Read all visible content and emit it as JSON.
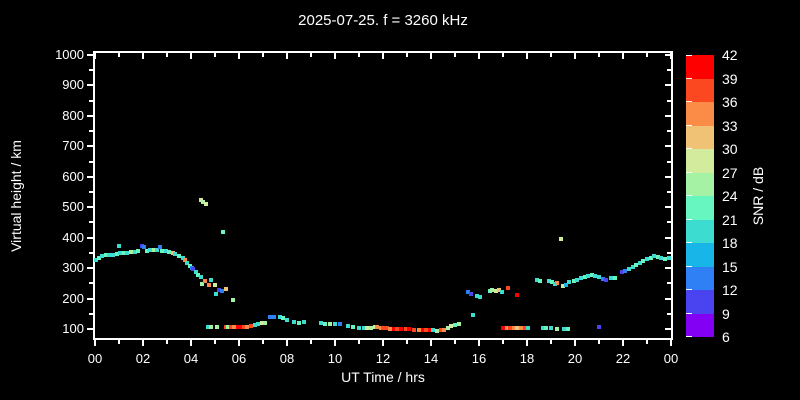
{
  "title": "2025-07-25. f = 3260 kHz",
  "chart_data": {
    "type": "scatter",
    "title": "2025-07-25. f = 3260 kHz",
    "xlabel": "UT Time / hrs",
    "ylabel": "Virtual height / km",
    "colorbar_label": "SNR / dB",
    "background_color": "#000000",
    "text_color": "#ffffff",
    "grid": false,
    "xlim_hours": [
      0,
      24
    ],
    "x_tick_labels": [
      "00",
      "02",
      "04",
      "06",
      "08",
      "10",
      "12",
      "14",
      "16",
      "18",
      "20",
      "22",
      "00"
    ],
    "x_tick_hours": [
      0,
      2,
      4,
      6,
      8,
      10,
      12,
      14,
      16,
      18,
      20,
      22,
      24
    ],
    "x_minor_tick_hours": [
      1,
      3,
      5,
      7,
      9,
      11,
      13,
      15,
      17,
      19,
      21,
      23
    ],
    "ylim_km": [
      70,
      1006
    ],
    "y_tick_km": [
      100,
      200,
      300,
      400,
      500,
      600,
      700,
      800,
      900,
      1000
    ],
    "y_minor_tick_km": [
      150,
      250,
      350,
      450,
      550,
      650,
      750,
      850,
      950
    ],
    "colorbar": {
      "min_db": 6,
      "max_db": 42,
      "step_db": 3,
      "tick_labels": [
        "42",
        "39",
        "36",
        "33",
        "30",
        "27",
        "24",
        "21",
        "18",
        "15",
        "12",
        "9",
        "6"
      ],
      "segment_colors_top_to_bottom": [
        "#ff0000",
        "#fc4821",
        "#fa8c48",
        "#f0c276",
        "#d2eb9c",
        "#a6f2a4",
        "#68f6c0",
        "#3cdcd0",
        "#18b6e8",
        "#2e80f4",
        "#4a44f0",
        "#8400f4"
      ]
    },
    "points_t_h_snr": [
      [
        0.05,
        328,
        18
      ],
      [
        0.15,
        333,
        21
      ],
      [
        0.3,
        340,
        18
      ],
      [
        0.45,
        343,
        21
      ],
      [
        0.6,
        344,
        18
      ],
      [
        0.75,
        343,
        18
      ],
      [
        0.9,
        345,
        21
      ],
      [
        1.0,
        372,
        18
      ],
      [
        1.05,
        348,
        18
      ],
      [
        1.2,
        350,
        21
      ],
      [
        1.35,
        349,
        18
      ],
      [
        1.5,
        352,
        24
      ],
      [
        1.65,
        354,
        18
      ],
      [
        1.8,
        356,
        21
      ],
      [
        1.95,
        373,
        9
      ],
      [
        2.05,
        370,
        12
      ],
      [
        2.15,
        357,
        21
      ],
      [
        2.3,
        360,
        18
      ],
      [
        2.45,
        358,
        24
      ],
      [
        2.6,
        359,
        18
      ],
      [
        2.7,
        368,
        12
      ],
      [
        2.8,
        357,
        21
      ],
      [
        2.95,
        355,
        18
      ],
      [
        3.1,
        352,
        21
      ],
      [
        3.25,
        350,
        30
      ],
      [
        3.35,
        345,
        18
      ],
      [
        3.5,
        340,
        21
      ],
      [
        3.65,
        332,
        18
      ],
      [
        3.75,
        326,
        33
      ],
      [
        3.85,
        318,
        18
      ],
      [
        3.95,
        308,
        21
      ],
      [
        4.05,
        300,
        12
      ],
      [
        4.1,
        296,
        9
      ],
      [
        4.2,
        287,
        18
      ],
      [
        4.3,
        279,
        21
      ],
      [
        4.4,
        270,
        18
      ],
      [
        4.4,
        524,
        27
      ],
      [
        4.5,
        517,
        24
      ],
      [
        4.62,
        509,
        27
      ],
      [
        5.33,
        419,
        21
      ],
      [
        4.45,
        248,
        24
      ],
      [
        4.6,
        258,
        33
      ],
      [
        4.75,
        243,
        33
      ],
      [
        4.85,
        260,
        18
      ],
      [
        5.0,
        246,
        27
      ],
      [
        5.05,
        214,
        18
      ],
      [
        5.15,
        228,
        9
      ],
      [
        5.3,
        224,
        12
      ],
      [
        5.45,
        230,
        30
      ],
      [
        5.75,
        195,
        24
      ],
      [
        4.7,
        106,
        18
      ],
      [
        4.85,
        107,
        24
      ],
      [
        5.1,
        106,
        24
      ],
      [
        5.45,
        107,
        36
      ],
      [
        5.55,
        108,
        24
      ],
      [
        5.65,
        107,
        36
      ],
      [
        5.8,
        106,
        33
      ],
      [
        5.95,
        108,
        39
      ],
      [
        6.1,
        107,
        39
      ],
      [
        6.2,
        108,
        36
      ],
      [
        6.35,
        108,
        33
      ],
      [
        6.5,
        109,
        36
      ],
      [
        6.65,
        113,
        18
      ],
      [
        6.8,
        115,
        18
      ],
      [
        6.95,
        119,
        27
      ],
      [
        7.1,
        121,
        24
      ],
      [
        7.3,
        138,
        12
      ],
      [
        7.45,
        141,
        12
      ],
      [
        7.7,
        141,
        18
      ],
      [
        7.85,
        136,
        21
      ],
      [
        8.0,
        131,
        18
      ],
      [
        8.3,
        124,
        18
      ],
      [
        8.5,
        121,
        21
      ],
      [
        8.7,
        124,
        18
      ],
      [
        9.4,
        120,
        18
      ],
      [
        9.6,
        118,
        21
      ],
      [
        9.8,
        117,
        24
      ],
      [
        10.0,
        117,
        18
      ],
      [
        10.2,
        118,
        12
      ],
      [
        10.55,
        111,
        18
      ],
      [
        10.75,
        107,
        21
      ],
      [
        11.0,
        104,
        18
      ],
      [
        11.2,
        103,
        18
      ],
      [
        11.35,
        104,
        27
      ],
      [
        11.5,
        104,
        24
      ],
      [
        11.65,
        107,
        27
      ],
      [
        11.75,
        106,
        33
      ],
      [
        11.9,
        104,
        33
      ],
      [
        12.0,
        103,
        36
      ],
      [
        12.15,
        102,
        36
      ],
      [
        12.3,
        101,
        33
      ],
      [
        12.45,
        99,
        39
      ],
      [
        12.6,
        100,
        36
      ],
      [
        12.75,
        99,
        39
      ],
      [
        12.95,
        99,
        36
      ],
      [
        13.1,
        99,
        39
      ],
      [
        13.3,
        98,
        36
      ],
      [
        13.5,
        98,
        33
      ],
      [
        13.65,
        98,
        39
      ],
      [
        13.8,
        97,
        36
      ],
      [
        13.95,
        97,
        39
      ],
      [
        14.1,
        96,
        18
      ],
      [
        14.25,
        95,
        24
      ],
      [
        14.4,
        97,
        36
      ],
      [
        14.55,
        97,
        33
      ],
      [
        14.7,
        104,
        24
      ],
      [
        14.85,
        111,
        27
      ],
      [
        15.0,
        112,
        21
      ],
      [
        15.15,
        118,
        24
      ],
      [
        15.55,
        222,
        12
      ],
      [
        15.65,
        215,
        9
      ],
      [
        15.75,
        146,
        18
      ],
      [
        15.9,
        209,
        18
      ],
      [
        16.05,
        204,
        18
      ],
      [
        16.45,
        225,
        21
      ],
      [
        16.55,
        227,
        24
      ],
      [
        16.7,
        226,
        27
      ],
      [
        16.85,
        228,
        30
      ],
      [
        16.95,
        223,
        18
      ],
      [
        17.2,
        235,
        36
      ],
      [
        17.6,
        212,
        39
      ],
      [
        17.0,
        103,
        39
      ],
      [
        17.15,
        103,
        33
      ],
      [
        17.3,
        103,
        36
      ],
      [
        17.45,
        103,
        33
      ],
      [
        17.6,
        102,
        30
      ],
      [
        17.75,
        103,
        33
      ],
      [
        17.9,
        103,
        36
      ],
      [
        18.05,
        102,
        18
      ],
      [
        18.65,
        103,
        18
      ],
      [
        18.8,
        103,
        21
      ],
      [
        19.0,
        102,
        18
      ],
      [
        19.25,
        101,
        24
      ],
      [
        19.55,
        100,
        18
      ],
      [
        19.7,
        99,
        21
      ],
      [
        21.0,
        105,
        9
      ],
      [
        18.4,
        261,
        18
      ],
      [
        18.55,
        259,
        21
      ],
      [
        18.9,
        257,
        18
      ],
      [
        19.05,
        253,
        21
      ],
      [
        19.15,
        248,
        18
      ],
      [
        19.25,
        250,
        33
      ],
      [
        19.4,
        396,
        27
      ],
      [
        19.5,
        241,
        27
      ],
      [
        19.62,
        243,
        15
      ],
      [
        19.75,
        254,
        18
      ],
      [
        19.95,
        257,
        21
      ],
      [
        20.1,
        261,
        18
      ],
      [
        20.25,
        268,
        18
      ],
      [
        20.4,
        272,
        21
      ],
      [
        20.55,
        274,
        18
      ],
      [
        20.7,
        277,
        21
      ],
      [
        20.85,
        273,
        18
      ],
      [
        21.0,
        270,
        18
      ],
      [
        21.15,
        265,
        12
      ],
      [
        21.3,
        260,
        9
      ],
      [
        21.5,
        266,
        18
      ],
      [
        21.65,
        269,
        21
      ],
      [
        21.95,
        287,
        9
      ],
      [
        22.1,
        292,
        12
      ],
      [
        22.25,
        297,
        18
      ],
      [
        22.4,
        303,
        18
      ],
      [
        22.55,
        311,
        21
      ],
      [
        22.7,
        318,
        18
      ],
      [
        22.85,
        325,
        21
      ],
      [
        23.0,
        329,
        18
      ],
      [
        23.15,
        333,
        21
      ],
      [
        23.3,
        340,
        18
      ],
      [
        23.45,
        338,
        21
      ],
      [
        23.6,
        333,
        18
      ],
      [
        23.75,
        330,
        21
      ],
      [
        23.9,
        332,
        18
      ]
    ]
  }
}
